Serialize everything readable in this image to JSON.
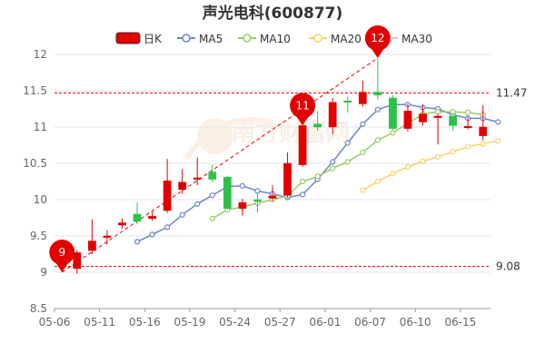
{
  "chart_data": {
    "type": "candlestick",
    "title": "声光电科(600877)",
    "x_tick_labels": [
      "05-06",
      "05-11",
      "05-16",
      "05-19",
      "05-24",
      "05-27",
      "06-01",
      "06-07",
      "06-10",
      "06-15"
    ],
    "y_ticks": [
      "8.5",
      "9",
      "9.5",
      "10",
      "10.5",
      "11",
      "11.5",
      "12"
    ],
    "ylim": [
      8.5,
      12.0
    ],
    "grid": "horizontal",
    "legend": {
      "position": "top",
      "entries": [
        {
          "label": "日K",
          "kind": "candle"
        },
        {
          "label": "MA5",
          "kind": "line"
        },
        {
          "label": "MA10",
          "kind": "line"
        },
        {
          "label": "MA20",
          "kind": "line"
        },
        {
          "label": "MA30",
          "kind": "line"
        }
      ]
    },
    "colors": {
      "up": "#e20000",
      "down": "#2cc24a",
      "ma5": "#6b85c8",
      "ma10": "#99cc66",
      "ma20": "#f6d36a",
      "ma30": "#d0d0d0",
      "marker": "#e20000",
      "reference": "#e20000"
    },
    "candles": [
      {
        "o": 9.12,
        "c": 9.1,
        "h": 9.16,
        "l": 9.07
      },
      {
        "o": 9.05,
        "c": 9.27,
        "h": 9.3,
        "l": 8.98
      },
      {
        "o": 9.3,
        "c": 9.43,
        "h": 9.73,
        "l": 9.25
      },
      {
        "o": 9.48,
        "c": 9.5,
        "h": 9.58,
        "l": 9.38
      },
      {
        "o": 9.65,
        "c": 9.68,
        "h": 9.74,
        "l": 9.6
      },
      {
        "o": 9.8,
        "c": 9.7,
        "h": 9.96,
        "l": 9.66
      },
      {
        "o": 9.74,
        "c": 9.77,
        "h": 9.83,
        "l": 9.71
      },
      {
        "o": 9.85,
        "c": 10.26,
        "h": 10.56,
        "l": 9.82
      },
      {
        "o": 10.14,
        "c": 10.24,
        "h": 10.42,
        "l": 10.08
      },
      {
        "o": 10.28,
        "c": 10.3,
        "h": 10.58,
        "l": 10.2
      },
      {
        "o": 10.38,
        "c": 10.28,
        "h": 10.48,
        "l": 10.24
      },
      {
        "o": 10.31,
        "c": 9.88,
        "h": 10.33,
        "l": 9.86
      },
      {
        "o": 9.88,
        "c": 9.96,
        "h": 10.01,
        "l": 9.78
      },
      {
        "o": 10.0,
        "c": 9.98,
        "h": 10.09,
        "l": 9.82
      },
      {
        "o": 10.02,
        "c": 10.05,
        "h": 10.2,
        "l": 9.98
      },
      {
        "o": 10.06,
        "c": 10.5,
        "h": 10.65,
        "l": 10.03
      },
      {
        "o": 10.48,
        "c": 11.02,
        "h": 11.09,
        "l": 10.45
      },
      {
        "o": 11.04,
        "c": 11.0,
        "h": 11.22,
        "l": 10.95
      },
      {
        "o": 11.0,
        "c": 11.34,
        "h": 11.4,
        "l": 10.9
      },
      {
        "o": 11.36,
        "c": 11.35,
        "h": 11.42,
        "l": 11.2
      },
      {
        "o": 11.32,
        "c": 11.48,
        "h": 11.64,
        "l": 11.28
      },
      {
        "o": 11.48,
        "c": 11.44,
        "h": 11.95,
        "l": 11.38
      },
      {
        "o": 11.4,
        "c": 10.98,
        "h": 11.44,
        "l": 10.96
      },
      {
        "o": 10.98,
        "c": 11.22,
        "h": 11.32,
        "l": 10.94
      },
      {
        "o": 11.07,
        "c": 11.18,
        "h": 11.3,
        "l": 11.02
      },
      {
        "o": 11.13,
        "c": 11.15,
        "h": 11.18,
        "l": 10.76
      },
      {
        "o": 11.15,
        "c": 11.02,
        "h": 11.19,
        "l": 10.95
      },
      {
        "o": 10.99,
        "c": 11.01,
        "h": 11.14,
        "l": 10.97
      },
      {
        "o": 10.88,
        "c": 11.0,
        "h": 11.3,
        "l": 10.82
      }
    ],
    "ma_series": [
      {
        "name": "MA5",
        "start": 5,
        "values": [
          9.42,
          9.52,
          9.62,
          9.79,
          9.94,
          10.06,
          10.18,
          10.19,
          10.12,
          10.08,
          10.03,
          10.07,
          10.28,
          10.52,
          10.78,
          11.04,
          11.24,
          11.31,
          11.31,
          11.27,
          11.25,
          11.17,
          11.12,
          11.12,
          11.07
        ]
      },
      {
        "name": "MA10",
        "start": 10,
        "values": [
          9.74,
          9.86,
          9.9,
          9.95,
          10.0,
          10.05,
          10.25,
          10.32,
          10.43,
          10.52,
          10.65,
          10.82,
          10.92,
          11.05,
          11.18,
          11.21,
          11.21,
          11.2,
          11.17
        ]
      },
      {
        "name": "MA20",
        "start": 20,
        "values": [
          10.13,
          10.25,
          10.36,
          10.45,
          10.53,
          10.59,
          10.66,
          10.73,
          10.77,
          10.81
        ]
      },
      {
        "name": "MA30",
        "start": 29,
        "values": []
      }
    ],
    "markers": [
      {
        "label": "9",
        "index": 0,
        "value": 9.0
      },
      {
        "label": "11",
        "index": 16,
        "value": 11.02
      },
      {
        "label": "12",
        "index": 21,
        "value": 11.95
      }
    ],
    "reference_lines": [
      {
        "label": "11.47",
        "value": 11.47
      },
      {
        "label": "9.08",
        "value": 9.08
      }
    ],
    "watermark": "南方财富网"
  }
}
